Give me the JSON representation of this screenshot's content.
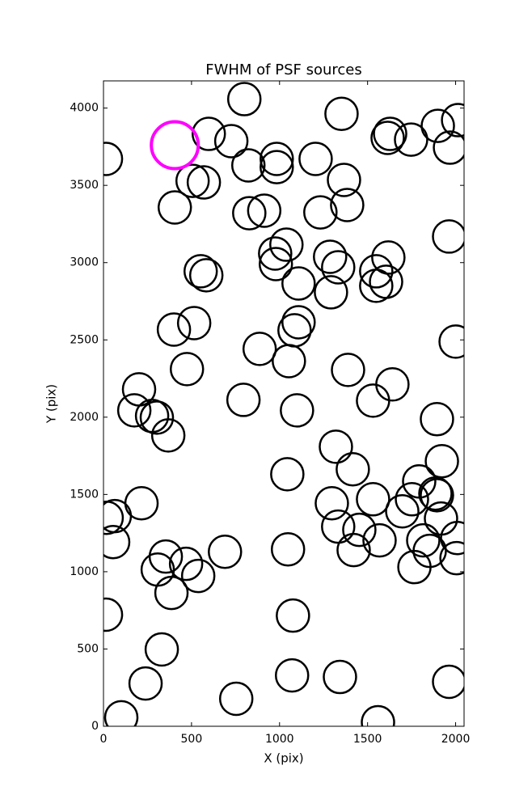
{
  "chart_data": {
    "type": "scatter",
    "title": "FWHM of PSF sources",
    "x_label": "X (pix)",
    "y_label": "Y (pix)",
    "xlim": [
      0,
      2048
    ],
    "ylim": [
      0,
      4176
    ],
    "xticks": [
      0,
      500,
      1000,
      1500,
      2000
    ],
    "yticks": [
      0,
      500,
      1000,
      1500,
      2000,
      2500,
      3000,
      3500,
      4000
    ],
    "series": [
      {
        "color": "#000000",
        "x": [
          14,
          800,
          1352,
          1628,
          1614,
          1747,
          1899,
          2014,
          1968,
          598,
          726,
          823,
          984,
          984,
          1205,
          1366,
          1384,
          506,
          570,
          405,
          828,
          913,
          1232,
          1963,
          1039,
          975,
          979,
          1287,
          1333,
          1618,
          1549,
          1549,
          1605,
          552,
          584,
          1108,
          1292,
          1108,
          1085,
          400,
          515,
          2000,
          887,
          1053,
          474,
          1389,
          1641,
          202,
          795,
          1531,
          175,
          276,
          303,
          1099,
          1894,
          368,
          1320,
          1922,
          1044,
          1416,
          1793,
          1531,
          1752,
          1885,
          1894,
          1297,
          1697,
          1917,
          18,
          64,
          216,
          55,
          1333,
          1453,
          1568,
          2009,
          2005,
          354,
          308,
          469,
          538,
          690,
          1048,
          1421,
          1816,
          1853,
          1766,
          386,
          14,
          1076,
          331,
          1071,
          1343,
          1963,
          239,
          754,
          101,
          1559
        ],
        "y": [
          3671,
          4058,
          3963,
          3833,
          3807,
          3796,
          3885,
          3922,
          3744,
          3833,
          3786,
          3629,
          3671,
          3618,
          3671,
          3535,
          3373,
          3529,
          3519,
          3357,
          3320,
          3336,
          3325,
          3169,
          3116,
          3059,
          2991,
          3038,
          2970,
          3033,
          2944,
          2850,
          2876,
          2944,
          2918,
          2865,
          2808,
          2614,
          2562,
          2567,
          2609,
          2489,
          2442,
          2363,
          2311,
          2306,
          2212,
          2180,
          2112,
          2107,
          2044,
          2008,
          1997,
          2044,
          1987,
          1882,
          1809,
          1715,
          1631,
          1663,
          1584,
          1469,
          1469,
          1506,
          1495,
          1443,
          1391,
          1344,
          1349,
          1360,
          1443,
          1192,
          1292,
          1271,
          1203,
          1218,
          1088,
          1098,
          1014,
          1051,
          973,
          1129,
          1145,
          1140,
          1203,
          1135,
          1030,
          863,
          722,
          716,
          497,
          329,
          319,
          288,
          277,
          178,
          58,
          26
        ]
      },
      {
        "color": "#ff00ff",
        "x": [
          405
        ],
        "y": [
          3760
        ]
      }
    ]
  }
}
